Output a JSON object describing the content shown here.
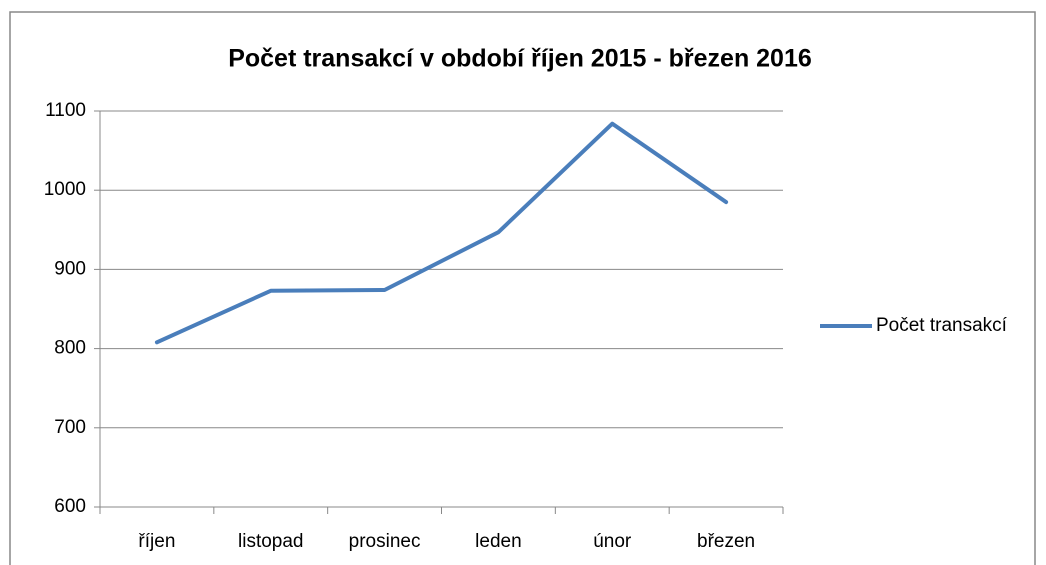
{
  "chart_data": {
    "type": "line",
    "title": "Počet transakcí v období říjen 2015 - březen 2016",
    "categories": [
      "říjen",
      "listopad",
      "prosinec",
      "leden",
      "únor",
      "březen"
    ],
    "series": [
      {
        "name": "Počet transakcí",
        "color": "#4a7ebb",
        "values": [
          808,
          873,
          874,
          947,
          1084,
          985
        ]
      }
    ],
    "ylim": [
      600,
      1100
    ],
    "yticks": [
      600,
      700,
      800,
      900,
      1000,
      1100
    ],
    "grid": true,
    "legend": "right"
  }
}
